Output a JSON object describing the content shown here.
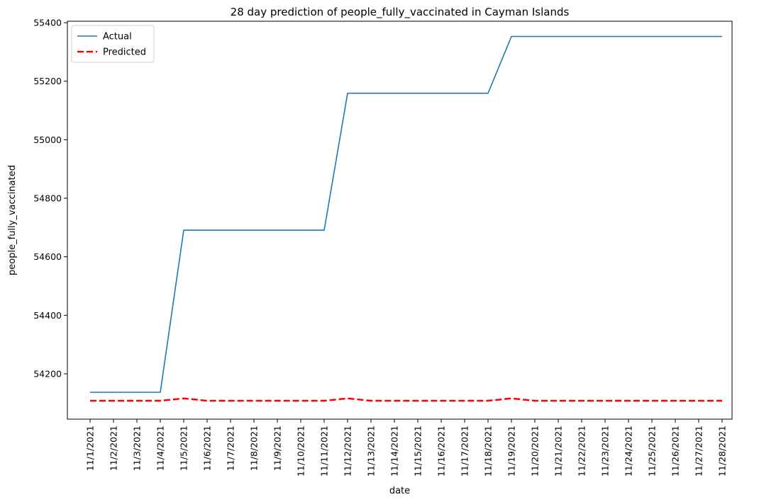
{
  "chart_data": {
    "type": "line",
    "title": "28 day prediction of people_fully_vaccinated in Cayman Islands",
    "xlabel": "date",
    "ylabel": "people_fully_vaccinated",
    "categories": [
      "11/1/2021",
      "11/2/2021",
      "11/3/2021",
      "11/4/2021",
      "11/5/2021",
      "11/6/2021",
      "11/7/2021",
      "11/8/2021",
      "11/9/2021",
      "11/10/2021",
      "11/11/2021",
      "11/12/2021",
      "11/13/2021",
      "11/14/2021",
      "11/15/2021",
      "11/16/2021",
      "11/17/2021",
      "11/18/2021",
      "11/19/2021",
      "11/20/2021",
      "11/21/2021",
      "11/22/2021",
      "11/23/2021",
      "11/24/2021",
      "11/25/2021",
      "11/26/2021",
      "11/27/2021",
      "11/28/2021"
    ],
    "yticks": [
      54200,
      54400,
      54600,
      54800,
      55000,
      55200,
      55400
    ],
    "ylim": [
      54045,
      55405
    ],
    "grid": false,
    "legend_position": "top-left",
    "series": [
      {
        "name": "Actual",
        "color": "#1f77b4",
        "style": "solid",
        "values": [
          54137,
          54137,
          54137,
          54137,
          54691,
          54691,
          54691,
          54691,
          54691,
          54691,
          54691,
          55159,
          55159,
          55159,
          55159,
          55159,
          55159,
          55159,
          55353,
          55353,
          55353,
          55353,
          55353,
          55353,
          55353,
          55353,
          55353,
          55353
        ]
      },
      {
        "name": "Predicted",
        "color": "#ff0000",
        "style": "dashed",
        "values": [
          54108,
          54108,
          54108,
          54108,
          54116,
          54108,
          54108,
          54108,
          54108,
          54108,
          54108,
          54116,
          54108,
          54108,
          54108,
          54108,
          54108,
          54108,
          54116,
          54108,
          54108,
          54108,
          54108,
          54108,
          54108,
          54108,
          54108,
          54108
        ]
      }
    ]
  }
}
